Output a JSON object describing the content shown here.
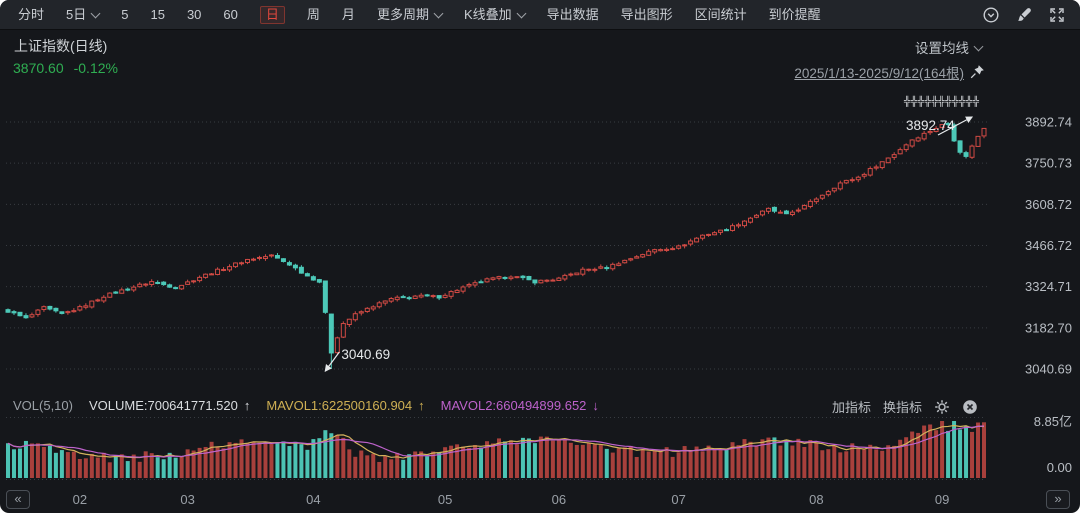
{
  "header": {
    "title": "上证指数(日线)",
    "last_price": "3870.60",
    "change_percent": "-0.12%",
    "ma_settings_label": "设置均线",
    "date_range": "2025/1/13-2025/9/12(164根)"
  },
  "toolbar": {
    "items": [
      {
        "label": "分时"
      },
      {
        "label": "5日",
        "dropdown": true
      },
      {
        "label": "5"
      },
      {
        "label": "15"
      },
      {
        "label": "30"
      },
      {
        "label": "60"
      },
      {
        "label": "日",
        "active": true
      },
      {
        "label": "周"
      },
      {
        "label": "月"
      },
      {
        "label": "更多周期",
        "dropdown": true
      },
      {
        "label": "K线叠加",
        "dropdown": true
      },
      {
        "label": "导出数据"
      },
      {
        "label": "导出图形"
      },
      {
        "label": "区间统计"
      },
      {
        "label": "到价提醒"
      }
    ],
    "right_icons": [
      "circle-chevron-down-icon",
      "brush-icon",
      "fullscreen-icon"
    ]
  },
  "volume_pane": {
    "indicator": "VOL(5,10)",
    "volume": "VOLUME:700641771.520",
    "volume_arrow": "↑",
    "mavol1": "MAVOL1:622500160.904",
    "mavol1_arrow": "↑",
    "mavol2": "MAVOL2:660494899.652",
    "mavol2_arrow": "↓",
    "add_indicator": "加指标",
    "switch_indicator": "换指标",
    "y_max": "8.85亿",
    "y_min": "0.00"
  },
  "nav": {
    "prev": "«",
    "next": "»"
  },
  "annotations": {
    "low_label": "3040.69",
    "high_label": "3892.74",
    "watermark": "╬╬╬╬╬╬╬╬╬╬╬"
  },
  "colors": {
    "up": "#d04a44",
    "down": "#4cc9b8",
    "volume_up": "#a8403c",
    "volume_down": "#4cc3b4",
    "mavol1": "#d3b35c",
    "mavol2": "#bd62cb",
    "grid": "#383c42",
    "axis_text": "#b9bec4",
    "month_text": "#9aa0a7",
    "green": "#2fae52",
    "annotation": "#e6e9eb"
  },
  "chart_data": {
    "type": "candlestick",
    "title": "上证指数 日线",
    "bar_count": 164,
    "date_start": "2025/1/13",
    "date_end": "2025/9/12",
    "y_ticks": [
      3892.74,
      3750.73,
      3608.72,
      3466.72,
      3324.71,
      3182.7,
      3040.69
    ],
    "low_point": {
      "index": 54,
      "value": 3040.69
    },
    "high_point": {
      "index": 157,
      "value": 3892.74
    },
    "last_close": 3870.6,
    "change_percent": -0.12,
    "close_anchors": [
      [
        0,
        3240
      ],
      [
        3,
        3215
      ],
      [
        6,
        3252
      ],
      [
        9,
        3230
      ],
      [
        12,
        3252
      ],
      [
        16,
        3292
      ],
      [
        20,
        3318
      ],
      [
        24,
        3342
      ],
      [
        28,
        3322
      ],
      [
        32,
        3358
      ],
      [
        36,
        3388
      ],
      [
        40,
        3418
      ],
      [
        44,
        3432
      ],
      [
        47,
        3402
      ],
      [
        50,
        3362
      ],
      [
        52,
        3342
      ],
      [
        53,
        3232
      ],
      [
        54,
        3096
      ],
      [
        55,
        3152
      ],
      [
        56,
        3198
      ],
      [
        58,
        3228
      ],
      [
        61,
        3258
      ],
      [
        64,
        3282
      ],
      [
        68,
        3292
      ],
      [
        72,
        3290
      ],
      [
        76,
        3322
      ],
      [
        80,
        3348
      ],
      [
        84,
        3362
      ],
      [
        88,
        3342
      ],
      [
        92,
        3352
      ],
      [
        96,
        3382
      ],
      [
        100,
        3392
      ],
      [
        104,
        3422
      ],
      [
        108,
        3452
      ],
      [
        112,
        3462
      ],
      [
        116,
        3502
      ],
      [
        120,
        3522
      ],
      [
        124,
        3562
      ],
      [
        127,
        3592
      ],
      [
        130,
        3572
      ],
      [
        133,
        3602
      ],
      [
        136,
        3642
      ],
      [
        139,
        3682
      ],
      [
        142,
        3702
      ],
      [
        145,
        3742
      ],
      [
        148,
        3782
      ],
      [
        151,
        3832
      ],
      [
        154,
        3862
      ],
      [
        156,
        3882
      ],
      [
        157,
        3885
      ],
      [
        158,
        3832
      ],
      [
        159,
        3792
      ],
      [
        160,
        3772
      ],
      [
        161,
        3812
      ],
      [
        162,
        3842
      ],
      [
        163,
        3870.6
      ]
    ],
    "month_ticks": [
      {
        "label": "02",
        "index": 12
      },
      {
        "label": "03",
        "index": 30
      },
      {
        "label": "04",
        "index": 51
      },
      {
        "label": "05",
        "index": 73
      },
      {
        "label": "06",
        "index": 92
      },
      {
        "label": "07",
        "index": 112
      },
      {
        "label": "08",
        "index": 135
      },
      {
        "label": "09",
        "index": 156
      }
    ],
    "volume": {
      "axis_max": 885000000,
      "axis_max_label": "8.85亿",
      "axis_min_label": "0.00",
      "last": 700641771.52,
      "mavol1_last": 622500160.904,
      "mavol2_last": 660494899.652,
      "spikes": [
        {
          "center": 54,
          "sigma": 2,
          "amp": 0.3
        },
        {
          "center": 99,
          "sigma": 18,
          "amp": 0.08
        },
        {
          "center": 155,
          "sigma": 5,
          "amp": 0.25
        }
      ],
      "ramp_start": 138,
      "ramp_per_bar": 0.01
    }
  }
}
